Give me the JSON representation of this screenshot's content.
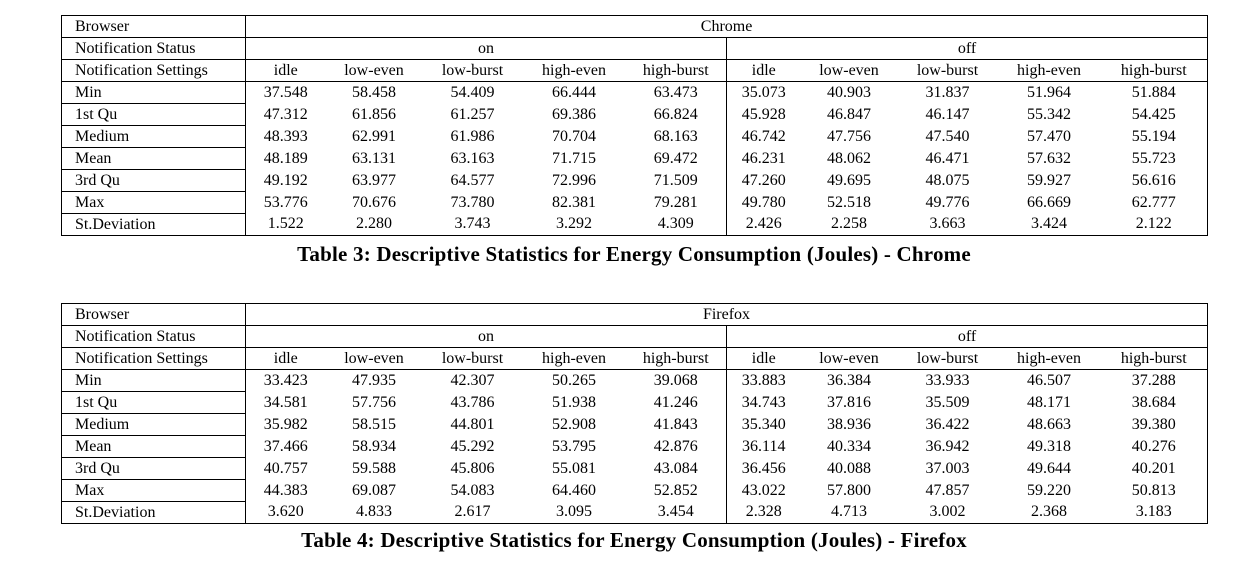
{
  "tables": [
    {
      "browser_label": "Browser",
      "browser": "Chrome",
      "status_label": "Notification Status",
      "status_on": "on",
      "status_off": "off",
      "settings_label": "Notification Settings",
      "settings": [
        "idle",
        "low-even",
        "low-burst",
        "high-even",
        "high-burst",
        "idle",
        "low-even",
        "low-burst",
        "high-even",
        "high-burst"
      ],
      "rows": [
        {
          "label": "Min",
          "values": [
            "37.548",
            "58.458",
            "54.409",
            "66.444",
            "63.473",
            "35.073",
            "40.903",
            "31.837",
            "51.964",
            "51.884"
          ]
        },
        {
          "label": "1st Qu",
          "values": [
            "47.312",
            "61.856",
            "61.257",
            "69.386",
            "66.824",
            "45.928",
            "46.847",
            "46.147",
            "55.342",
            "54.425"
          ]
        },
        {
          "label": "Medium",
          "values": [
            "48.393",
            "62.991",
            "61.986",
            "70.704",
            "68.163",
            "46.742",
            "47.756",
            "47.540",
            "57.470",
            "55.194"
          ]
        },
        {
          "label": "Mean",
          "values": [
            "48.189",
            "63.131",
            "63.163",
            "71.715",
            "69.472",
            "46.231",
            "48.062",
            "46.471",
            "57.632",
            "55.723"
          ]
        },
        {
          "label": "3rd Qu",
          "values": [
            "49.192",
            "63.977",
            "64.577",
            "72.996",
            "71.509",
            "47.260",
            "49.695",
            "48.075",
            "59.927",
            "56.616"
          ]
        },
        {
          "label": "Max",
          "values": [
            "53.776",
            "70.676",
            "73.780",
            "82.381",
            "79.281",
            "49.780",
            "52.518",
            "49.776",
            "66.669",
            "62.777"
          ]
        },
        {
          "label": "St.Deviation",
          "values": [
            "1.522",
            "2.280",
            "3.743",
            "3.292",
            "4.309",
            "2.426",
            "2.258",
            "3.663",
            "3.424",
            "2.122"
          ]
        }
      ],
      "caption": "Table 3: Descriptive Statistics for Energy Consumption (Joules) - Chrome"
    },
    {
      "browser_label": "Browser",
      "browser": "Firefox",
      "status_label": "Notification Status",
      "status_on": "on",
      "status_off": "off",
      "settings_label": "Notification Settings",
      "settings": [
        "idle",
        "low-even",
        "low-burst",
        "high-even",
        "high-burst",
        "idle",
        "low-even",
        "low-burst",
        "high-even",
        "high-burst"
      ],
      "rows": [
        {
          "label": "Min",
          "values": [
            "33.423",
            "47.935",
            "42.307",
            "50.265",
            "39.068",
            "33.883",
            "36.384",
            "33.933",
            "46.507",
            "37.288"
          ]
        },
        {
          "label": "1st Qu",
          "values": [
            "34.581",
            "57.756",
            "43.786",
            "51.938",
            "41.246",
            "34.743",
            "37.816",
            "35.509",
            "48.171",
            "38.684"
          ]
        },
        {
          "label": "Medium",
          "values": [
            "35.982",
            "58.515",
            "44.801",
            "52.908",
            "41.843",
            "35.340",
            "38.936",
            "36.422",
            "48.663",
            "39.380"
          ]
        },
        {
          "label": "Mean",
          "values": [
            "37.466",
            "58.934",
            "45.292",
            "53.795",
            "42.876",
            "36.114",
            "40.334",
            "36.942",
            "49.318",
            "40.276"
          ]
        },
        {
          "label": "3rd Qu",
          "values": [
            "40.757",
            "59.588",
            "45.806",
            "55.081",
            "43.084",
            "36.456",
            "40.088",
            "37.003",
            "49.644",
            "40.201"
          ]
        },
        {
          "label": "Max",
          "values": [
            "44.383",
            "69.087",
            "54.083",
            "64.460",
            "52.852",
            "43.022",
            "57.800",
            "47.857",
            "59.220",
            "50.813"
          ]
        },
        {
          "label": "St.Deviation",
          "values": [
            "3.620",
            "4.833",
            "2.617",
            "3.095",
            "3.454",
            "2.328",
            "4.713",
            "3.002",
            "2.368",
            "3.183"
          ]
        }
      ],
      "caption": "Table 4: Descriptive Statistics for Energy Consumption (Joules) - Firefox"
    }
  ]
}
